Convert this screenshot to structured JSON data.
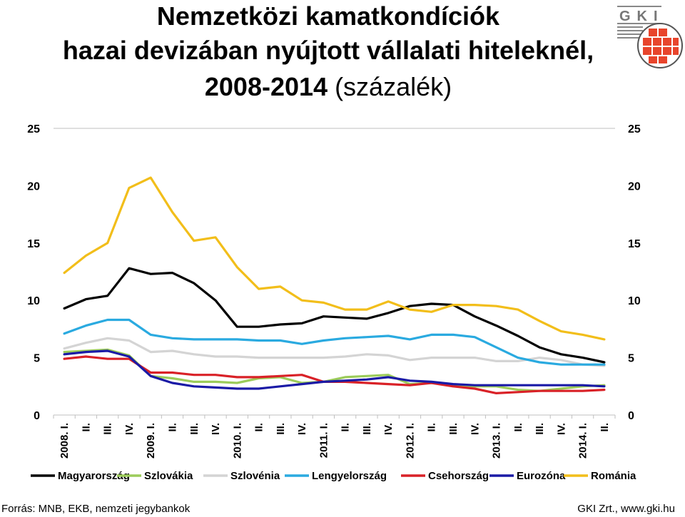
{
  "title": {
    "line1": "Nemzetközi kamatkondíciók",
    "line2": "hazai devizában nyújtott vállalati hiteleknél,",
    "line3_bold": "2008-2014",
    "line3_rest": " (százalék)"
  },
  "logo": {
    "text": "GKI",
    "icon": "gki-logo",
    "accent": "#e8452c"
  },
  "footer": {
    "source": "Forrás: MNB, EKB, nemzeti jegybankok",
    "credit": "GKI Zrt., www.gki.hu"
  },
  "chart_data": {
    "type": "line",
    "ylim": [
      0,
      25
    ],
    "yticks": [
      0,
      5,
      10,
      15,
      20,
      25
    ],
    "dual_y_axis": true,
    "grid": false,
    "legend_position": "bottom",
    "categories": [
      "2008. I.",
      "II.",
      "III.",
      "IV.",
      "2009. I.",
      "II.",
      "III.",
      "IV.",
      "2010. I.",
      "II.",
      "III.",
      "IV.",
      "2011. I.",
      "II.",
      "III.",
      "IV.",
      "2012. I.",
      "II.",
      "III.",
      "IV.",
      "2013. I.",
      "II.",
      "III.",
      "IV.",
      "2014. I.",
      "II."
    ],
    "series": [
      {
        "name": "Magyarország",
        "color": "#000000",
        "values": [
          9.3,
          10.1,
          10.4,
          12.8,
          12.3,
          12.4,
          11.5,
          10.0,
          7.7,
          7.7,
          7.9,
          8.0,
          8.6,
          8.5,
          8.4,
          8.9,
          9.5,
          9.7,
          9.6,
          8.6,
          7.8,
          6.9,
          5.9,
          5.3,
          5.0,
          4.6
        ]
      },
      {
        "name": "Szlovákia",
        "color": "#9ccc5a",
        "values": [
          5.5,
          5.6,
          5.7,
          5.2,
          3.4,
          3.2,
          2.9,
          2.9,
          2.8,
          3.2,
          3.3,
          2.8,
          2.9,
          3.3,
          3.4,
          3.5,
          2.7,
          2.8,
          2.6,
          2.5,
          2.5,
          2.2,
          2.1,
          2.3,
          2.5,
          2.6
        ]
      },
      {
        "name": "Szlovénia",
        "color": "#d4d4d4",
        "values": [
          5.8,
          6.3,
          6.7,
          6.5,
          5.5,
          5.6,
          5.3,
          5.1,
          5.1,
          5.0,
          5.0,
          5.0,
          5.0,
          5.1,
          5.3,
          5.2,
          4.8,
          5.0,
          5.0,
          5.0,
          4.7,
          4.7,
          5.0,
          4.8,
          4.4,
          4.3
        ]
      },
      {
        "name": "Lengyelország",
        "color": "#2aaae0",
        "values": [
          7.1,
          7.8,
          8.3,
          8.3,
          7.0,
          6.7,
          6.6,
          6.6,
          6.6,
          6.5,
          6.5,
          6.2,
          6.5,
          6.7,
          6.8,
          6.9,
          6.6,
          7.0,
          7.0,
          6.8,
          5.9,
          5.0,
          4.6,
          4.4,
          4.4,
          4.4
        ]
      },
      {
        "name": "Csehország",
        "color": "#d92127",
        "values": [
          4.9,
          5.1,
          4.9,
          4.9,
          3.7,
          3.7,
          3.5,
          3.5,
          3.3,
          3.3,
          3.4,
          3.5,
          2.9,
          2.9,
          2.8,
          2.7,
          2.6,
          2.8,
          2.5,
          2.3,
          1.9,
          2.0,
          2.1,
          2.1,
          2.1,
          2.2
        ]
      },
      {
        "name": "Eurozóna",
        "color": "#1a1aa6",
        "values": [
          5.3,
          5.5,
          5.6,
          5.1,
          3.4,
          2.8,
          2.5,
          2.4,
          2.3,
          2.3,
          2.5,
          2.7,
          2.9,
          3.0,
          3.1,
          3.3,
          3.0,
          2.9,
          2.7,
          2.6,
          2.6,
          2.6,
          2.6,
          2.6,
          2.6,
          2.5
        ]
      },
      {
        "name": "Románia",
        "color": "#f2be1a",
        "values": [
          12.4,
          13.9,
          15.0,
          19.8,
          20.7,
          17.7,
          15.2,
          15.5,
          12.9,
          11.0,
          11.2,
          10.0,
          9.8,
          9.2,
          9.2,
          9.9,
          9.2,
          9.0,
          9.6,
          9.6,
          9.5,
          9.2,
          8.2,
          7.3,
          7.0,
          6.6
        ]
      }
    ]
  }
}
